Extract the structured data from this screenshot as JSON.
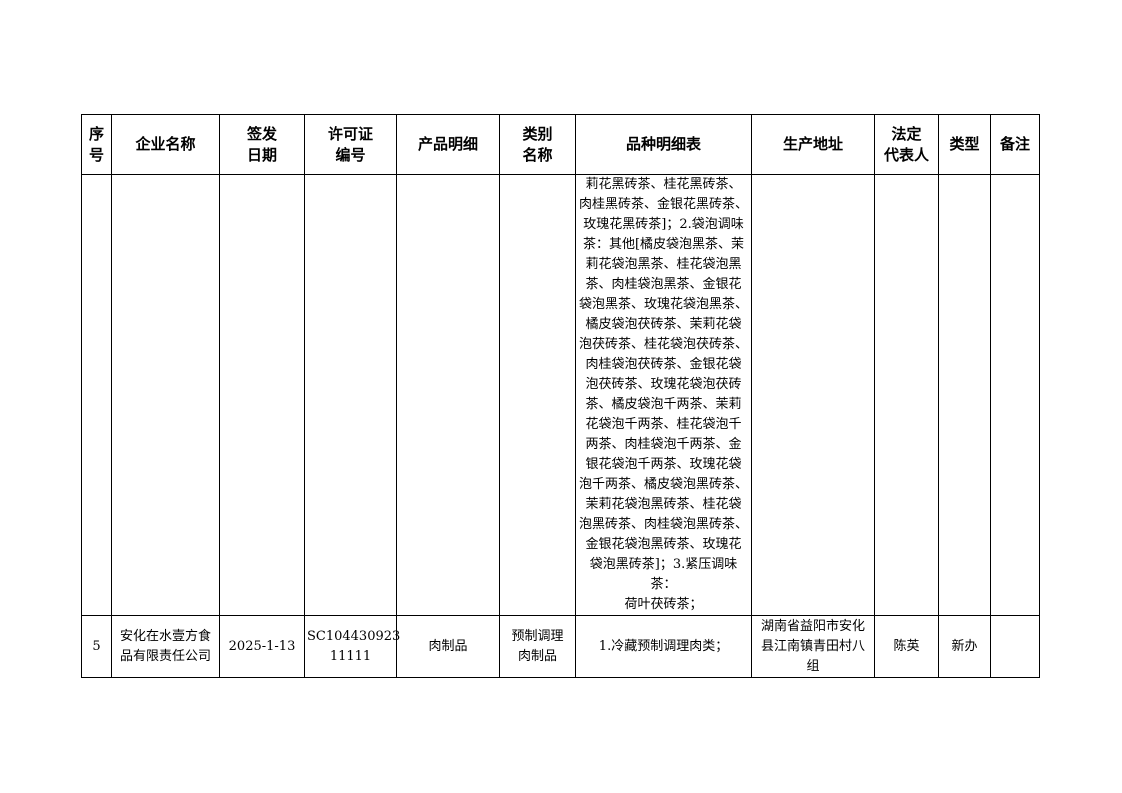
{
  "headers": [
    "序\n号",
    "企业名称",
    "签发\n日期",
    "许可证\n编号",
    "产品明细",
    "类别\n名称",
    "品种明细表",
    "生产地址",
    "法定\n代表人",
    "类型",
    "备注"
  ],
  "rows": [
    {
      "seq": "",
      "company": "",
      "date": "",
      "license": "",
      "product": "",
      "category": "",
      "varieties": "莉花黑砖茶、桂花黑砖茶、\n肉桂黑砖茶、金银花黑砖茶、\n玫瑰花黑砖茶]；2.袋泡调味\n茶：其他[橘皮袋泡黑茶、茉\n莉花袋泡黑茶、桂花袋泡黑\n茶、肉桂袋泡黑茶、金银花\n袋泡黑茶、玫瑰花袋泡黑茶、\n橘皮袋泡茯砖茶、茉莉花袋\n泡茯砖茶、桂花袋泡茯砖茶、\n肉桂袋泡茯砖茶、金银花袋\n泡茯砖茶、玫瑰花袋泡茯砖\n茶、橘皮袋泡千两茶、茉莉\n花袋泡千两茶、桂花袋泡千\n两茶、肉桂袋泡千两茶、金\n银花袋泡千两茶、玫瑰花袋\n泡千两茶、橘皮袋泡黑砖茶、\n茉莉花袋泡黑砖茶、桂花袋\n泡黑砖茶、肉桂袋泡黑砖茶、\n金银花袋泡黑砖茶、玫瑰花\n袋泡黑砖茶]；3.紧压调味茶：\n荷叶茯砖茶；",
      "address": "",
      "legal_rep": "",
      "type": "",
      "remark": ""
    },
    {
      "seq": "5",
      "company": "安化在水壹方食\n品有限责任公司",
      "date": "2025-1-13",
      "license": "SC104430923\n11111",
      "product": "肉制品",
      "category": "预制调理\n肉制品",
      "varieties": "1.冷藏预制调理肉类；",
      "address": "湖南省益阳市安化\n县江南镇青田村八\n组",
      "legal_rep": "陈英",
      "type": "新办",
      "remark": ""
    }
  ]
}
